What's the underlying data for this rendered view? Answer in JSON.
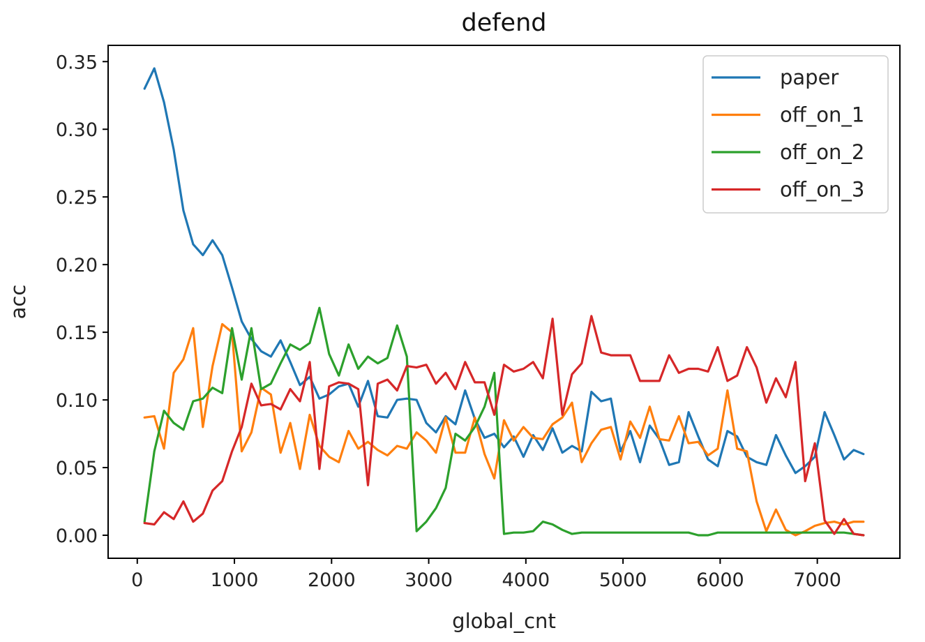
{
  "chart_data": {
    "type": "line",
    "title": "defend",
    "xlabel": "global_cnt",
    "ylabel": "acc",
    "xlim": [
      -300,
      7850
    ],
    "ylim": [
      -0.017,
      0.362
    ],
    "xticks": [
      0,
      1000,
      2000,
      3000,
      4000,
      5000,
      6000,
      7000
    ],
    "xtick_labels": [
      "0",
      "1000",
      "2000",
      "3000",
      "4000",
      "5000",
      "6000",
      "7000"
    ],
    "yticks": [
      0.0,
      0.05,
      0.1,
      0.15,
      0.2,
      0.25,
      0.3,
      0.35
    ],
    "ytick_labels": [
      "0.00",
      "0.05",
      "0.10",
      "0.15",
      "0.20",
      "0.25",
      "0.30",
      "0.35"
    ],
    "grid": false,
    "legend_position": "top-right",
    "x": [
      75,
      175,
      275,
      375,
      475,
      575,
      675,
      775,
      875,
      975,
      1075,
      1175,
      1275,
      1375,
      1475,
      1575,
      1675,
      1775,
      1875,
      1975,
      2075,
      2175,
      2275,
      2375,
      2475,
      2575,
      2675,
      2775,
      2875,
      2975,
      3075,
      3175,
      3275,
      3375,
      3475,
      3575,
      3675,
      3775,
      3875,
      3975,
      4075,
      4175,
      4275,
      4375,
      4475,
      4575,
      4675,
      4775,
      4875,
      4975,
      5075,
      5175,
      5275,
      5375,
      5475,
      5575,
      5675,
      5775,
      5875,
      5975,
      6075,
      6175,
      6275,
      6375,
      6475,
      6575,
      6675,
      6775,
      6875,
      6975,
      7075,
      7175,
      7275,
      7375,
      7475
    ],
    "series": [
      {
        "name": "paper",
        "color": "#1f77b4",
        "values": [
          0.33,
          0.345,
          0.32,
          0.285,
          0.24,
          0.215,
          0.207,
          0.218,
          0.207,
          0.183,
          0.158,
          0.145,
          0.136,
          0.132,
          0.144,
          0.128,
          0.111,
          0.117,
          0.101,
          0.104,
          0.11,
          0.112,
          0.095,
          0.114,
          0.088,
          0.087,
          0.1,
          0.101,
          0.1,
          0.083,
          0.076,
          0.088,
          0.082,
          0.107,
          0.086,
          0.072,
          0.075,
          0.065,
          0.073,
          0.058,
          0.074,
          0.063,
          0.079,
          0.061,
          0.066,
          0.062,
          0.106,
          0.099,
          0.101,
          0.062,
          0.077,
          0.054,
          0.081,
          0.071,
          0.052,
          0.054,
          0.091,
          0.073,
          0.056,
          0.051,
          0.077,
          0.073,
          0.058,
          0.054,
          0.052,
          0.074,
          0.059,
          0.046,
          0.051,
          0.058,
          0.091,
          0.074,
          0.056,
          0.063,
          0.06
        ]
      },
      {
        "name": "off_on_1",
        "color": "#ff7f0e",
        "values": [
          0.087,
          0.088,
          0.064,
          0.12,
          0.13,
          0.153,
          0.08,
          0.125,
          0.156,
          0.15,
          0.062,
          0.076,
          0.109,
          0.104,
          0.061,
          0.083,
          0.049,
          0.089,
          0.066,
          0.058,
          0.054,
          0.077,
          0.064,
          0.069,
          0.063,
          0.059,
          0.066,
          0.064,
          0.076,
          0.07,
          0.061,
          0.087,
          0.061,
          0.061,
          0.087,
          0.06,
          0.042,
          0.085,
          0.07,
          0.08,
          0.072,
          0.071,
          0.082,
          0.087,
          0.098,
          0.054,
          0.068,
          0.078,
          0.08,
          0.056,
          0.084,
          0.072,
          0.095,
          0.071,
          0.07,
          0.088,
          0.068,
          0.069,
          0.059,
          0.064,
          0.107,
          0.064,
          0.062,
          0.025,
          0.003,
          0.019,
          0.004,
          0.0,
          0.003,
          0.007,
          0.009,
          0.01,
          0.008,
          0.01,
          0.01
        ]
      },
      {
        "name": "off_on_2",
        "color": "#2ca02c",
        "values": [
          0.01,
          0.062,
          0.092,
          0.083,
          0.078,
          0.099,
          0.101,
          0.109,
          0.105,
          0.153,
          0.115,
          0.153,
          0.108,
          0.112,
          0.127,
          0.141,
          0.137,
          0.142,
          0.168,
          0.134,
          0.118,
          0.141,
          0.123,
          0.132,
          0.127,
          0.131,
          0.155,
          0.132,
          0.003,
          0.01,
          0.02,
          0.035,
          0.075,
          0.07,
          0.08,
          0.095,
          0.12,
          0.001,
          0.002,
          0.002,
          0.003,
          0.01,
          0.008,
          0.004,
          0.001,
          0.002,
          0.002,
          0.002,
          0.002,
          0.002,
          0.002,
          0.002,
          0.002,
          0.002,
          0.002,
          0.002,
          0.002,
          0.0,
          0.0,
          0.002,
          0.002,
          0.002,
          0.002,
          0.002,
          0.002,
          0.002,
          0.002,
          0.002,
          0.002,
          0.002,
          0.002,
          0.002,
          0.002,
          0.001,
          0.0
        ]
      },
      {
        "name": "off_on_3",
        "color": "#d62728",
        "values": [
          0.009,
          0.008,
          0.017,
          0.012,
          0.025,
          0.01,
          0.016,
          0.033,
          0.04,
          0.062,
          0.08,
          0.112,
          0.096,
          0.097,
          0.093,
          0.108,
          0.099,
          0.128,
          0.049,
          0.11,
          0.113,
          0.112,
          0.108,
          0.037,
          0.112,
          0.115,
          0.107,
          0.125,
          0.124,
          0.126,
          0.112,
          0.12,
          0.108,
          0.128,
          0.113,
          0.113,
          0.089,
          0.126,
          0.121,
          0.123,
          0.128,
          0.116,
          0.16,
          0.089,
          0.119,
          0.127,
          0.162,
          0.135,
          0.133,
          0.133,
          0.133,
          0.114,
          0.114,
          0.114,
          0.133,
          0.12,
          0.123,
          0.123,
          0.121,
          0.139,
          0.114,
          0.118,
          0.139,
          0.124,
          0.098,
          0.116,
          0.102,
          0.128,
          0.04,
          0.068,
          0.011,
          0.001,
          0.012,
          0.001,
          0.0
        ]
      }
    ]
  }
}
